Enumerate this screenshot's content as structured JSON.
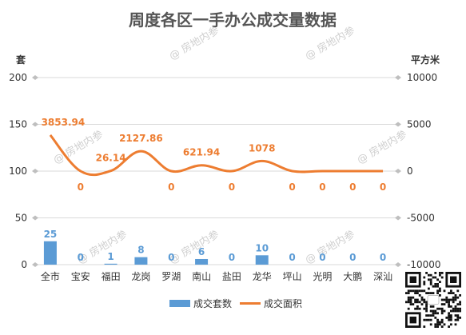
{
  "chart_data": {
    "type": "bar",
    "title": "周度各区一手办公成交量数据",
    "left_axis_label": "套",
    "right_axis_label": "平方米",
    "categories": [
      "全市",
      "宝安",
      "福田",
      "龙岗",
      "罗湖",
      "南山",
      "盐田",
      "龙华",
      "坪山",
      "光明",
      "大鹏",
      "深汕"
    ],
    "ylim": [
      0,
      200
    ],
    "yticks": [
      0,
      50,
      100,
      150,
      200
    ],
    "y2lim": [
      -10000,
      10000
    ],
    "y2ticks": [
      -10000,
      -5000,
      0,
      5000,
      10000
    ],
    "grid": true,
    "legend_position": "bottom",
    "series": [
      {
        "name": "成交套数",
        "type": "bar",
        "axis": "left",
        "color": "#5b9bd5",
        "values": [
          25,
          0,
          1,
          8,
          0,
          6,
          0,
          10,
          0,
          0,
          0,
          0
        ],
        "labels": [
          "25",
          "0",
          "1",
          "8",
          "0",
          "6",
          "0",
          "10",
          "0",
          "0",
          "0",
          "0"
        ]
      },
      {
        "name": "成交面积",
        "type": "line",
        "axis": "right",
        "smooth": true,
        "color": "#ed7d31",
        "values": [
          3853.94,
          0,
          26.14,
          2127.86,
          0,
          621.94,
          0,
          1078,
          0,
          0,
          0,
          0
        ],
        "labels": [
          "3853.94",
          "0",
          "26.14",
          "2127.86",
          "0",
          "621.94",
          "0",
          "1078",
          "0",
          "0",
          "0",
          "0"
        ]
      }
    ],
    "watermark": "@ 房地内参"
  }
}
